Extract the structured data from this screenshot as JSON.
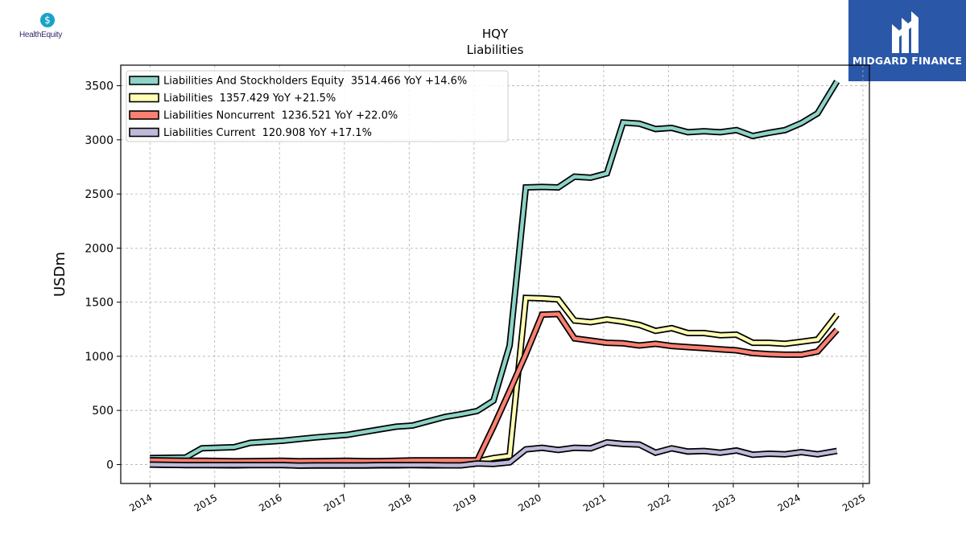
{
  "logos": {
    "left_brand": "HealthEquity",
    "right_brand": "MIDGARD FINANCE"
  },
  "chart_data": {
    "type": "line",
    "title": "HQY",
    "subtitle": "Liabilities",
    "xlabel": "",
    "ylabel": "USDm",
    "xlim": [
      2013.55,
      2025.1
    ],
    "ylim": [
      -175,
      3690
    ],
    "x_ticks": [
      2014,
      2015,
      2016,
      2017,
      2018,
      2019,
      2020,
      2021,
      2022,
      2023,
      2024,
      2025
    ],
    "y_ticks": [
      0,
      500,
      1000,
      1500,
      2000,
      2500,
      3000,
      3500
    ],
    "grid": true,
    "legend_position": "top-left",
    "series": [
      {
        "name": "Liabilities And Stockholders Equity  3514.466 YoY +14.6%",
        "color": "#8dd3c7",
        "x": [
          2014.0,
          2014.55,
          2014.8,
          2015.3,
          2015.55,
          2016.05,
          2016.3,
          2016.55,
          2017.05,
          2017.3,
          2017.55,
          2017.8,
          2018.05,
          2018.3,
          2018.55,
          2018.8,
          2019.05,
          2019.3,
          2019.55,
          2019.8,
          2020.05,
          2020.3,
          2020.55,
          2020.8,
          2021.05,
          2021.3,
          2021.55,
          2021.8,
          2022.05,
          2022.3,
          2022.55,
          2022.8,
          2023.05,
          2023.3,
          2023.55,
          2023.8,
          2024.05,
          2024.3,
          2024.6
        ],
        "y": [
          60,
          65,
          150,
          160,
          200,
          220,
          235,
          250,
          275,
          300,
          325,
          350,
          360,
          400,
          440,
          465,
          495,
          590,
          1100,
          2560,
          2565,
          2560,
          2660,
          2650,
          2690,
          3160,
          3150,
          3100,
          3110,
          3070,
          3080,
          3070,
          3090,
          3035,
          3065,
          3090,
          3155,
          3245,
          3540
        ]
      },
      {
        "name": "Liabilities  1357.429 YoY +21.5%",
        "color": "#ffffb3",
        "x": [
          2014.0,
          2014.55,
          2014.8,
          2015.3,
          2015.55,
          2016.05,
          2016.3,
          2016.55,
          2017.05,
          2017.3,
          2017.55,
          2017.8,
          2018.05,
          2018.3,
          2018.55,
          2018.8,
          2019.05,
          2019.3,
          2019.55,
          2019.8,
          2020.05,
          2020.3,
          2020.55,
          2020.8,
          2021.05,
          2021.3,
          2021.55,
          2021.8,
          2022.05,
          2022.3,
          2022.55,
          2022.8,
          2023.05,
          2023.3,
          2023.55,
          2023.8,
          2024.05,
          2024.3,
          2024.6
        ],
        "y": [
          0,
          -5,
          -5,
          -8,
          -5,
          -5,
          -10,
          -10,
          -10,
          -10,
          -8,
          -8,
          -5,
          -8,
          -8,
          -8,
          30,
          60,
          80,
          1540,
          1535,
          1525,
          1330,
          1315,
          1340,
          1320,
          1290,
          1235,
          1260,
          1215,
          1215,
          1195,
          1200,
          1125,
          1125,
          1115,
          1135,
          1155,
          1385
        ]
      },
      {
        "name": "Liabilities Noncurrent  1236.521 YoY +22.0%",
        "color": "#fb8072",
        "x": [
          2014.0,
          2014.55,
          2014.8,
          2015.3,
          2015.55,
          2016.05,
          2016.3,
          2016.55,
          2017.05,
          2017.3,
          2017.55,
          2017.8,
          2018.05,
          2018.3,
          2018.55,
          2018.8,
          2019.05,
          2019.3,
          2019.55,
          2019.8,
          2020.05,
          2020.3,
          2020.55,
          2020.8,
          2021.05,
          2021.3,
          2021.55,
          2021.8,
          2022.05,
          2022.3,
          2022.55,
          2022.8,
          2023.05,
          2023.3,
          2023.55,
          2023.8,
          2024.05,
          2024.3,
          2024.6
        ],
        "y": [
          40,
          35,
          35,
          30,
          32,
          35,
          30,
          32,
          35,
          32,
          32,
          35,
          38,
          38,
          38,
          38,
          38,
          350,
          680,
          1020,
          1385,
          1390,
          1165,
          1145,
          1125,
          1120,
          1100,
          1115,
          1095,
          1085,
          1075,
          1065,
          1055,
          1030,
          1020,
          1015,
          1015,
          1045,
          1245
        ]
      },
      {
        "name": "Liabilities Current  120.908 YoY +17.1%",
        "color": "#bebada",
        "x": [
          2014.0,
          2014.55,
          2014.8,
          2015.3,
          2015.55,
          2016.05,
          2016.3,
          2016.55,
          2017.05,
          2017.3,
          2017.55,
          2017.8,
          2018.05,
          2018.3,
          2018.55,
          2018.8,
          2019.05,
          2019.3,
          2019.55,
          2019.8,
          2020.05,
          2020.3,
          2020.55,
          2020.8,
          2021.05,
          2021.3,
          2021.55,
          2021.8,
          2022.05,
          2022.3,
          2022.55,
          2022.8,
          2023.05,
          2023.3,
          2023.55,
          2023.8,
          2024.05,
          2024.3,
          2024.6
        ],
        "y": [
          0,
          -5,
          -5,
          -5,
          -5,
          -5,
          -10,
          -8,
          -8,
          -8,
          -5,
          -5,
          -5,
          -5,
          -8,
          -8,
          10,
          5,
          20,
          140,
          155,
          135,
          155,
          150,
          205,
          190,
          185,
          110,
          150,
          120,
          125,
          110,
          130,
          90,
          100,
          95,
          115,
          95,
          125
        ]
      }
    ]
  }
}
